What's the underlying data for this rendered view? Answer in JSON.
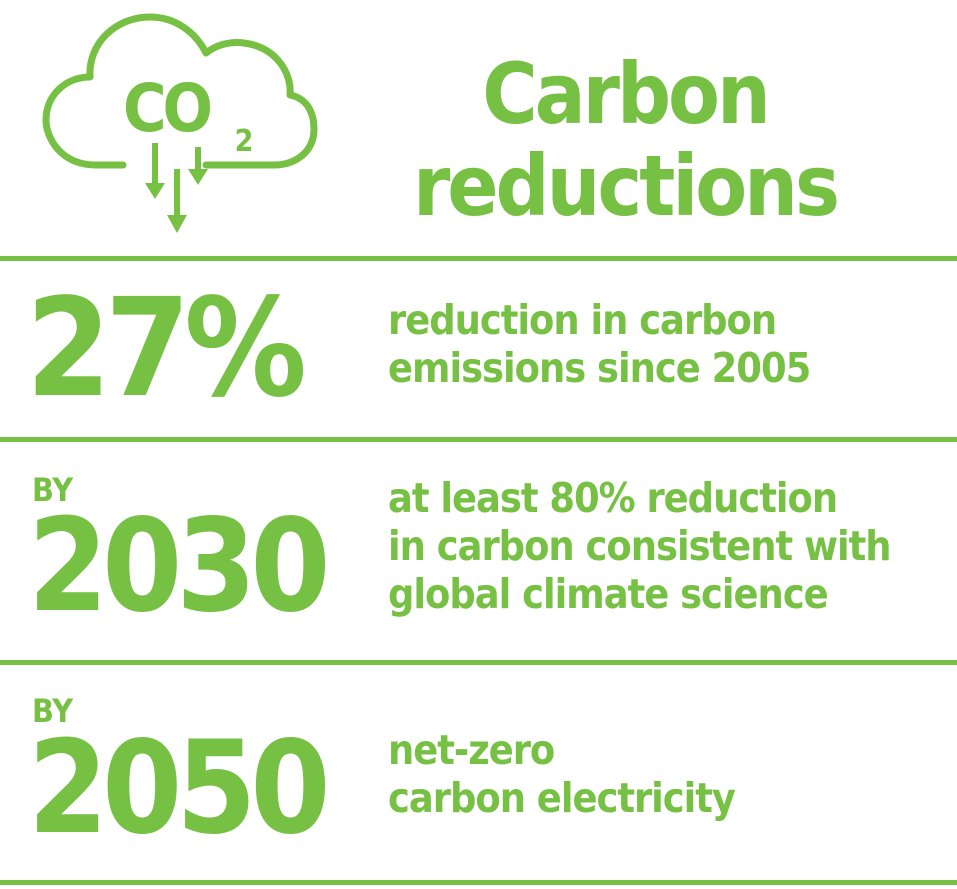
{
  "colors": {
    "accent": "#76c043"
  },
  "header": {
    "icon": "co2-cloud-down-arrows-icon",
    "icon_text": "CO",
    "icon_subscript": "2",
    "title_lines": [
      "Carbon",
      "reductions"
    ]
  },
  "rows": [
    {
      "prefix": "",
      "value": "27%",
      "description_lines": [
        "reduction in carbon",
        "emissions since 2005"
      ]
    },
    {
      "prefix": "BY",
      "value": "2030",
      "description_lines": [
        "at least 80% reduction",
        "in carbon consistent with",
        "global climate science"
      ]
    },
    {
      "prefix": "BY",
      "value": "2050",
      "description_lines": [
        "net-zero",
        "carbon electricity"
      ]
    }
  ]
}
